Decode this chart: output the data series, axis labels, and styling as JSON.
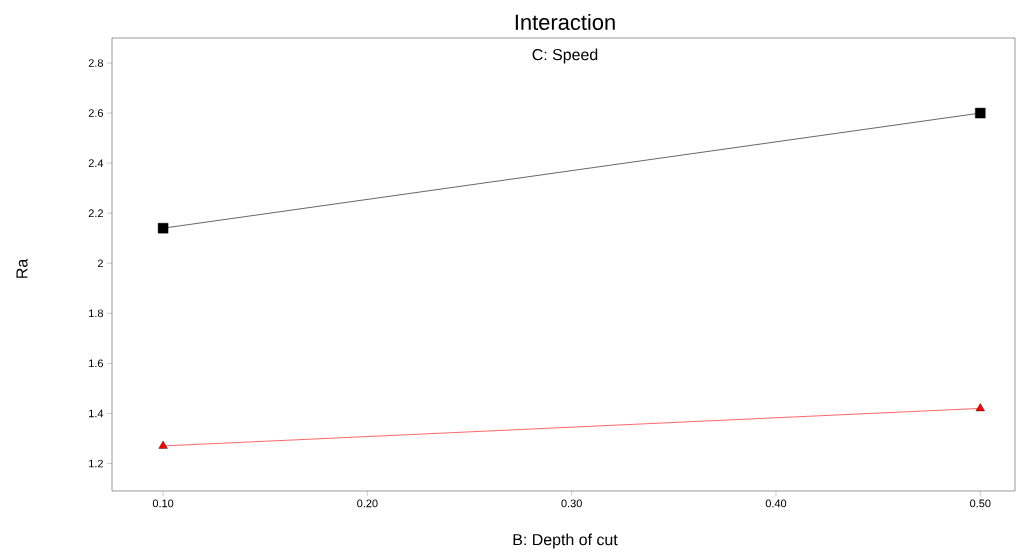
{
  "chart_data": {
    "type": "line",
    "title": "Interaction",
    "subtitle": "C: Speed",
    "xlabel": "B: Depth of cut",
    "ylabel": "Ra",
    "x": [
      0.1,
      0.5
    ],
    "series": [
      {
        "color": "#000000",
        "marker": "square",
        "values": [
          2.14,
          2.6
        ]
      },
      {
        "color": "#ff0000",
        "marker": "triangle",
        "values": [
          1.27,
          1.42
        ]
      }
    ],
    "xlim": [
      0.075,
      0.517
    ],
    "ylim": [
      1.09,
      2.9
    ],
    "xticks": [
      {
        "value": 0.1,
        "label": "0.10"
      },
      {
        "value": 0.2,
        "label": "0.20"
      },
      {
        "value": 0.3,
        "label": "0.30"
      },
      {
        "value": 0.4,
        "label": "0.40"
      },
      {
        "value": 0.5,
        "label": "0.50"
      }
    ],
    "yticks": [
      1.2,
      1.4,
      1.6,
      1.8,
      2,
      2.2,
      2.4,
      2.6,
      2.8
    ],
    "grid": false,
    "line_style": "solid"
  }
}
